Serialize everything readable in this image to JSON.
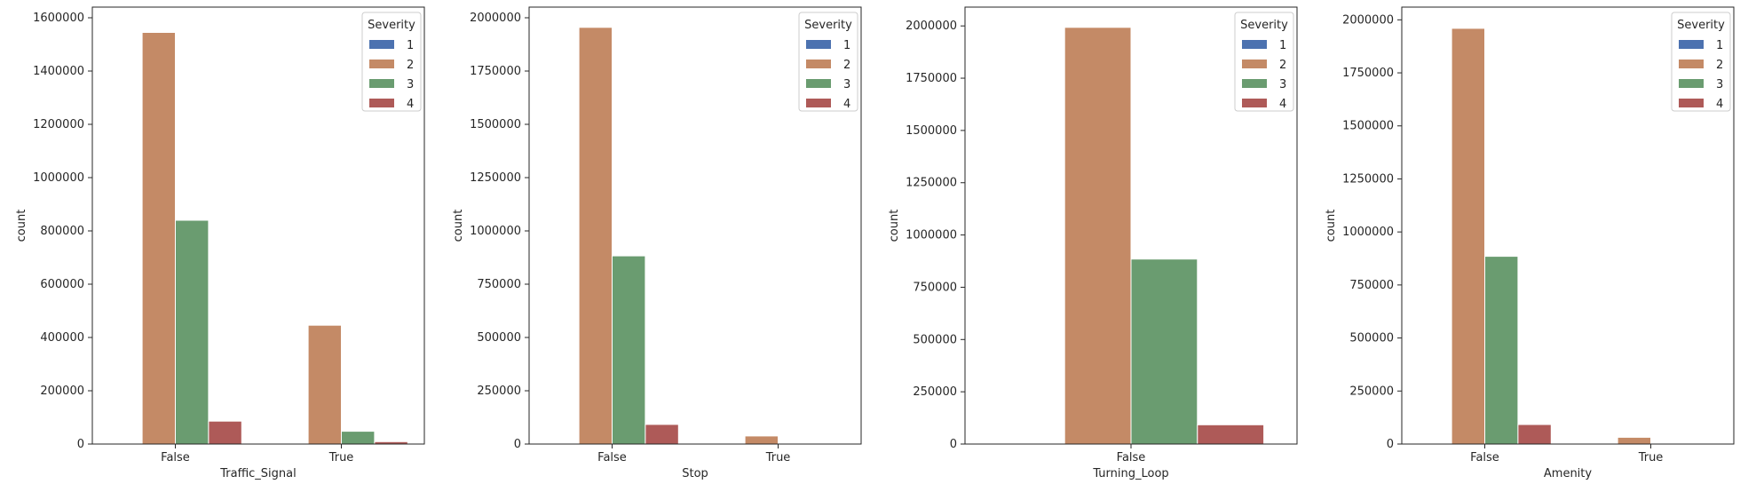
{
  "legend": {
    "title": "Severity",
    "items": [
      {
        "label": "1",
        "color": "#4c72b0"
      },
      {
        "label": "2",
        "color": "#c48a66"
      },
      {
        "label": "3",
        "color": "#6a9c70"
      },
      {
        "label": "4",
        "color": "#ae5a58"
      }
    ]
  },
  "chart_data": [
    {
      "type": "bar",
      "categories": [
        "False",
        "True"
      ],
      "xlabel": "Traffic_Signal",
      "ylabel": "count",
      "ylim": [
        0,
        1640000
      ],
      "yticks": [
        0,
        200000,
        400000,
        600000,
        800000,
        1000000,
        1200000,
        1400000,
        1600000
      ],
      "series": [
        {
          "name": "1",
          "values": [
            0,
            0
          ]
        },
        {
          "name": "2",
          "values": [
            1545000,
            446000
          ]
        },
        {
          "name": "3",
          "values": [
            840000,
            48000
          ]
        },
        {
          "name": "4",
          "values": [
            86000,
            9000
          ]
        }
      ],
      "legend_position": "top-right"
    },
    {
      "type": "bar",
      "categories": [
        "False",
        "True"
      ],
      "xlabel": "Stop",
      "ylabel": "count",
      "ylim": [
        0,
        2050000
      ],
      "yticks": [
        0,
        250000,
        500000,
        750000,
        1000000,
        1250000,
        1500000,
        1750000,
        2000000
      ],
      "series": [
        {
          "name": "1",
          "values": [
            0,
            0
          ]
        },
        {
          "name": "2",
          "values": [
            1955000,
            38000
          ]
        },
        {
          "name": "3",
          "values": [
            883000,
            3000
          ]
        },
        {
          "name": "4",
          "values": [
            92000,
            1000
          ]
        }
      ],
      "legend_position": "top-right"
    },
    {
      "type": "bar",
      "categories": [
        "False"
      ],
      "xlabel": "Turning_Loop",
      "ylabel": "count",
      "ylim": [
        0,
        2090000
      ],
      "yticks": [
        0,
        250000,
        500000,
        750000,
        1000000,
        1250000,
        1500000,
        1750000,
        2000000
      ],
      "series": [
        {
          "name": "1",
          "values": [
            0
          ]
        },
        {
          "name": "2",
          "values": [
            1993000
          ]
        },
        {
          "name": "3",
          "values": [
            885000
          ]
        },
        {
          "name": "4",
          "values": [
            92000
          ]
        }
      ],
      "legend_position": "top-right"
    },
    {
      "type": "bar",
      "categories": [
        "False",
        "True"
      ],
      "xlabel": "Amenity",
      "ylabel": "count",
      "ylim": [
        0,
        2060000
      ],
      "yticks": [
        0,
        250000,
        500000,
        750000,
        1000000,
        1250000,
        1500000,
        1750000,
        2000000
      ],
      "series": [
        {
          "name": "1",
          "values": [
            0,
            0
          ]
        },
        {
          "name": "2",
          "values": [
            1960000,
            32000
          ]
        },
        {
          "name": "3",
          "values": [
            885000,
            3000
          ]
        },
        {
          "name": "4",
          "values": [
            92000,
            1000
          ]
        }
      ],
      "legend_position": "top-right"
    }
  ]
}
